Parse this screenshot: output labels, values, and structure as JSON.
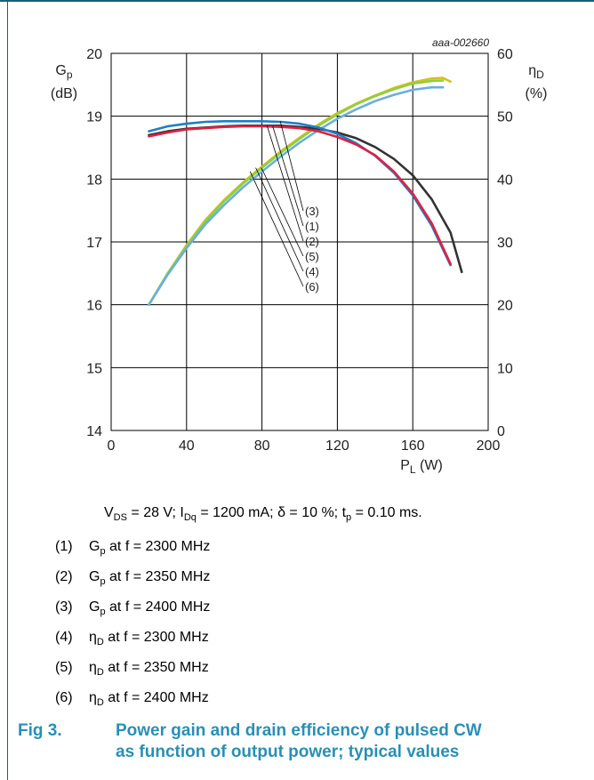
{
  "chart_data": {
    "type": "line",
    "identifier": "aaa-002660",
    "x_axis": {
      "label_main": "P",
      "label_sub": "L",
      "label_unit": " (W)",
      "range": [
        0,
        200
      ],
      "ticks": [
        "0",
        "40",
        "80",
        "120",
        "160",
        "200"
      ]
    },
    "y_left": {
      "label_main": "G",
      "label_sub": "p",
      "label_unit": "(dB)",
      "range": [
        14,
        20
      ],
      "ticks": [
        "14",
        "15",
        "16",
        "17",
        "18",
        "19",
        "20"
      ]
    },
    "y_right": {
      "label_main": "η",
      "label_sub": "D",
      "label_unit": "(%)",
      "range": [
        0,
        60
      ],
      "ticks": [
        "0",
        "10",
        "20",
        "30",
        "40",
        "50",
        "60"
      ]
    },
    "grid": true,
    "series": [
      {
        "id": "(1)",
        "axis": "left",
        "color": "#e02040",
        "points": [
          [
            20,
            18.68
          ],
          [
            30,
            18.74
          ],
          [
            40,
            18.79
          ],
          [
            50,
            18.81
          ],
          [
            60,
            18.83
          ],
          [
            70,
            18.84
          ],
          [
            80,
            18.84
          ],
          [
            90,
            18.83
          ],
          [
            100,
            18.81
          ],
          [
            110,
            18.76
          ],
          [
            120,
            18.67
          ],
          [
            130,
            18.55
          ],
          [
            140,
            18.38
          ],
          [
            150,
            18.12
          ],
          [
            160,
            17.77
          ],
          [
            170,
            17.3
          ],
          [
            180,
            16.65
          ]
        ]
      },
      {
        "id": "(2)",
        "axis": "left",
        "color": "#333333",
        "points": [
          [
            20,
            18.7
          ],
          [
            30,
            18.76
          ],
          [
            40,
            18.8
          ],
          [
            50,
            18.82
          ],
          [
            60,
            18.84
          ],
          [
            70,
            18.85
          ],
          [
            80,
            18.85
          ],
          [
            90,
            18.85
          ],
          [
            100,
            18.83
          ],
          [
            110,
            18.8
          ],
          [
            120,
            18.74
          ],
          [
            130,
            18.65
          ],
          [
            140,
            18.51
          ],
          [
            150,
            18.32
          ],
          [
            160,
            18.06
          ],
          [
            170,
            17.68
          ],
          [
            180,
            17.15
          ],
          [
            186,
            16.52
          ]
        ]
      },
      {
        "id": "(3)",
        "axis": "left",
        "color": "#1e7ec8",
        "points": [
          [
            20,
            18.76
          ],
          [
            30,
            18.84
          ],
          [
            40,
            18.88
          ],
          [
            50,
            18.91
          ],
          [
            60,
            18.92
          ],
          [
            70,
            18.92
          ],
          [
            80,
            18.92
          ],
          [
            90,
            18.91
          ],
          [
            100,
            18.88
          ],
          [
            110,
            18.82
          ],
          [
            120,
            18.72
          ],
          [
            130,
            18.57
          ],
          [
            140,
            18.37
          ],
          [
            150,
            18.1
          ],
          [
            160,
            17.74
          ],
          [
            170,
            17.26
          ],
          [
            180,
            16.63
          ]
        ]
      },
      {
        "id": "(4)",
        "axis": "right",
        "color": "#d8c020",
        "points": [
          [
            20,
            20.0
          ],
          [
            30,
            25.0
          ],
          [
            40,
            29.5
          ],
          [
            50,
            33.5
          ],
          [
            60,
            36.7
          ],
          [
            70,
            39.5
          ],
          [
            80,
            42.0
          ],
          [
            90,
            44.4
          ],
          [
            100,
            46.6
          ],
          [
            110,
            48.7
          ],
          [
            120,
            50.5
          ],
          [
            130,
            52.0
          ],
          [
            140,
            53.3
          ],
          [
            150,
            54.5
          ],
          [
            160,
            55.4
          ],
          [
            170,
            56.0
          ],
          [
            176,
            56.1
          ],
          [
            180,
            55.5
          ]
        ]
      },
      {
        "id": "(5)",
        "axis": "right",
        "color": "#8ecf40",
        "points": [
          [
            20,
            20.0
          ],
          [
            30,
            25.0
          ],
          [
            40,
            29.3
          ],
          [
            50,
            33.3
          ],
          [
            60,
            36.5
          ],
          [
            70,
            39.3
          ],
          [
            80,
            41.8
          ],
          [
            90,
            44.2
          ],
          [
            100,
            46.4
          ],
          [
            110,
            48.5
          ],
          [
            120,
            50.3
          ],
          [
            130,
            51.9
          ],
          [
            140,
            53.2
          ],
          [
            150,
            54.3
          ],
          [
            160,
            55.2
          ],
          [
            170,
            55.6
          ],
          [
            176,
            55.7
          ]
        ]
      },
      {
        "id": "(6)",
        "axis": "right",
        "color": "#6aaee0",
        "points": [
          [
            20,
            20.0
          ],
          [
            30,
            24.8
          ],
          [
            40,
            29.0
          ],
          [
            50,
            32.8
          ],
          [
            60,
            35.9
          ],
          [
            70,
            38.7
          ],
          [
            80,
            41.2
          ],
          [
            90,
            43.6
          ],
          [
            100,
            45.8
          ],
          [
            110,
            47.8
          ],
          [
            120,
            49.6
          ],
          [
            130,
            51.1
          ],
          [
            140,
            52.4
          ],
          [
            150,
            53.4
          ],
          [
            160,
            54.2
          ],
          [
            170,
            54.6
          ],
          [
            176,
            54.6
          ]
        ]
      }
    ],
    "curve_labels": [
      "(3)",
      "(1)",
      "(2)",
      "(5)",
      "(4)",
      "(6)"
    ]
  },
  "conditions": {
    "vds_main": "V",
    "vds_sub": "DS",
    "vds_rest": " = 28 V; I",
    "idq_sub": "Dq",
    "idq_rest": " = 1200 mA; δ = 10 %; t",
    "tp_sub": "p",
    "tp_rest": " = 0.10 ms."
  },
  "legend": [
    {
      "num": "(1)",
      "pre": "G",
      "sub": "p",
      "post": " at f = 2300 MHz"
    },
    {
      "num": "(2)",
      "pre": "G",
      "sub": "p",
      "post": " at f = 2350 MHz"
    },
    {
      "num": "(3)",
      "pre": "G",
      "sub": "p",
      "post": " at f = 2400 MHz"
    },
    {
      "num": "(4)",
      "pre": "η",
      "sub": "D",
      "post": " at f = 2300 MHz"
    },
    {
      "num": "(5)",
      "pre": "η",
      "sub": "D",
      "post": " at f = 2350 MHz"
    },
    {
      "num": "(6)",
      "pre": "η",
      "sub": "D",
      "post": " at f = 2400 MHz"
    }
  ],
  "figure": {
    "number": "Fig 3.",
    "title_line1": "Power gain and drain efficiency of pulsed CW",
    "title_line2": "as function of output power; typical values"
  }
}
